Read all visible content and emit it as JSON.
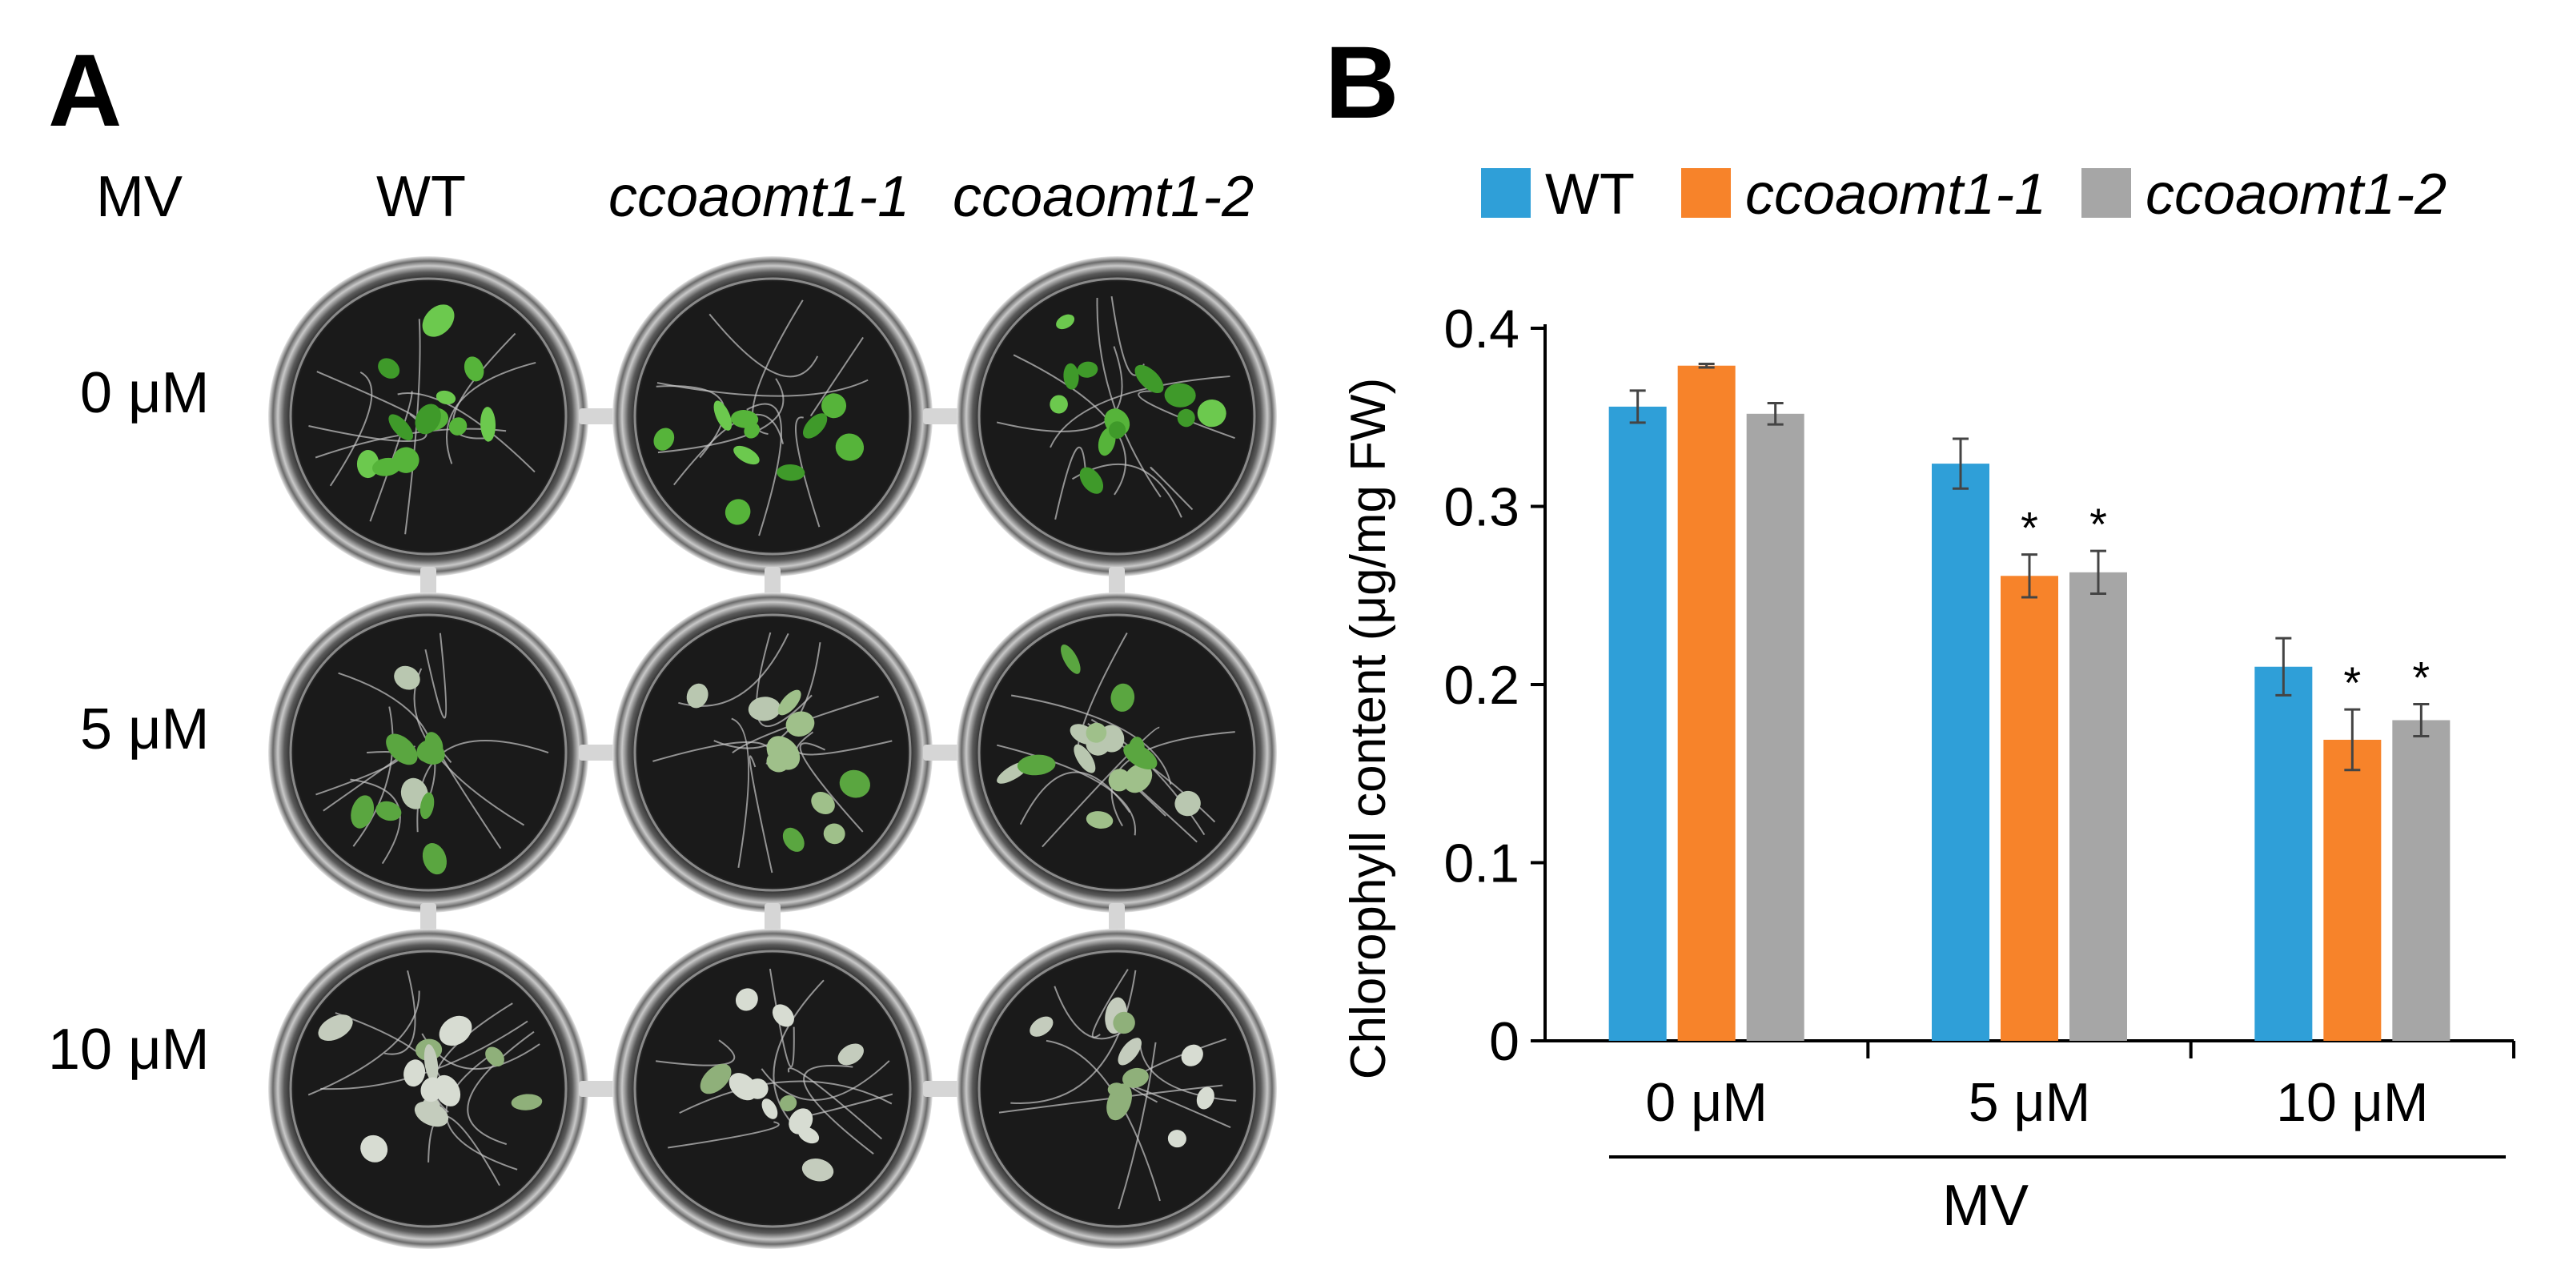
{
  "panel_a": {
    "letter": "A",
    "column_header_row_label": "MV",
    "genotypes": [
      "WT",
      "ccoaomt1-1",
      "ccoaomt1-2"
    ],
    "row_labels": [
      "0 μM",
      "5 μM",
      "10 μM"
    ]
  },
  "panel_b": {
    "letter": "B",
    "legend": [
      "WT",
      "ccoaomt1-1",
      "ccoaomt1-2"
    ]
  },
  "chart_data": {
    "type": "bar",
    "categories": [
      "0 μM",
      "5 μM",
      "10 μM"
    ],
    "group_label": "MV",
    "ylabel": "Chlorophyll content (μg/mg FW)",
    "xlabel": "",
    "ylim": [
      0,
      0.4
    ],
    "yticks": [
      "0",
      "0.1",
      "0.2",
      "0.3",
      "0.4"
    ],
    "ytick_values": [
      0,
      0.1,
      0.2,
      0.3,
      0.4
    ],
    "legend_position": "top",
    "grid": false,
    "series": [
      {
        "name": "WT",
        "color": "#2F9FD8",
        "values": [
          0.356,
          0.324,
          0.21
        ],
        "errors": [
          0.009,
          0.014,
          0.016
        ],
        "significance": [
          "",
          "",
          ""
        ]
      },
      {
        "name": "ccoaomt1-1",
        "color": "#F7832A",
        "values": [
          0.379,
          0.261,
          0.169
        ],
        "errors": [
          0.001,
          0.012,
          0.017
        ],
        "significance": [
          "",
          "*",
          "*"
        ]
      },
      {
        "name": "ccoaomt1-2",
        "color": "#A6A6A6",
        "values": [
          0.352,
          0.263,
          0.18
        ],
        "errors": [
          0.006,
          0.012,
          0.009
        ],
        "significance": [
          "",
          "*",
          "*"
        ]
      }
    ]
  }
}
